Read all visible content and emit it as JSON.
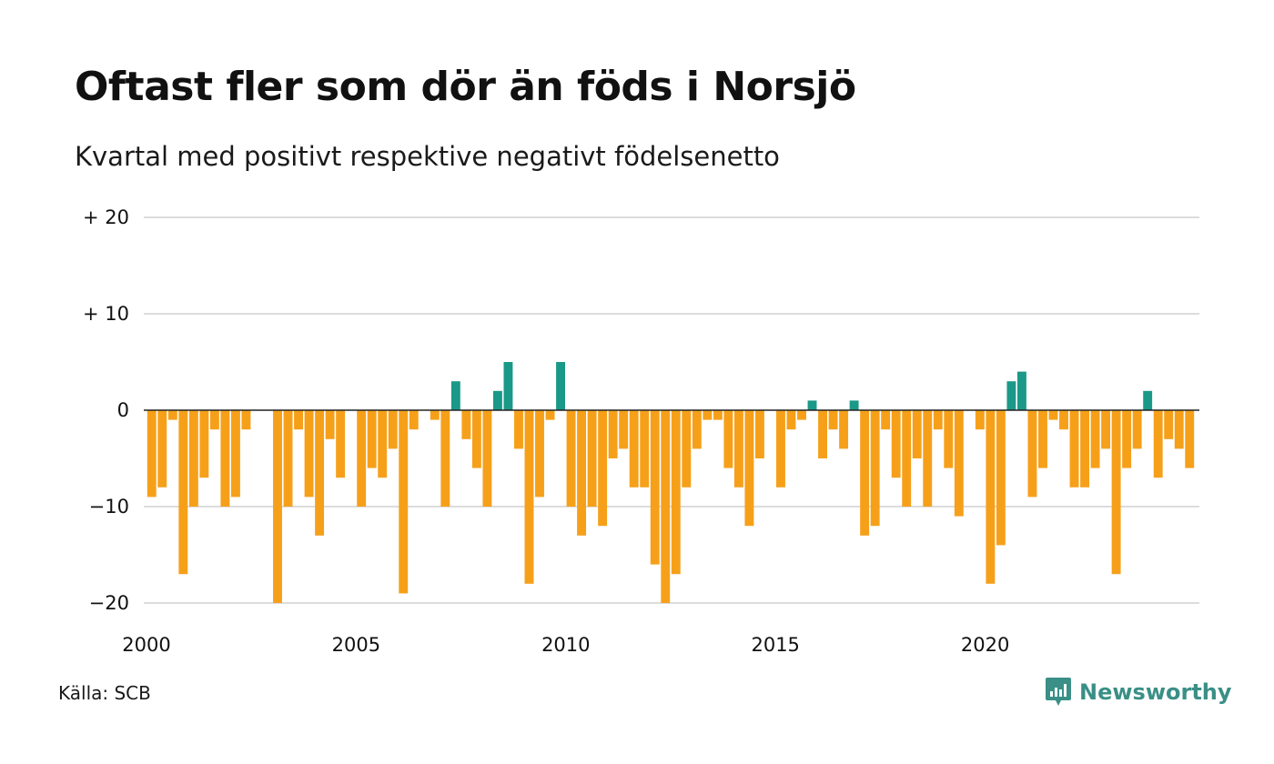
{
  "title": "Oftast fler som dör än föds i Norsjö",
  "subtitle": "Kvartal med positivt respektive negativt födelsenetto",
  "source": "Källa: SCB",
  "brand": "Newsworthy",
  "colors": {
    "positive": "#1a9988",
    "negative": "#f6a01a",
    "grid": "#dcdcdc",
    "axis": "#222222",
    "brand": "#3a8f86"
  },
  "chart_data": {
    "type": "bar",
    "start_year": 2000,
    "values": [
      -9,
      -8,
      -1,
      -17,
      -10,
      -7,
      -2,
      -10,
      -9,
      -2,
      0,
      0,
      -20,
      -10,
      -2,
      -9,
      -13,
      -3,
      -7,
      0,
      -10,
      -6,
      -7,
      -4,
      -19,
      -2,
      0,
      -1,
      -10,
      3,
      -3,
      -6,
      -10,
      2,
      5,
      -4,
      -18,
      -9,
      -1,
      5,
      -10,
      -13,
      -10,
      -12,
      -5,
      -4,
      -8,
      -8,
      -16,
      -20,
      -17,
      -8,
      -4,
      -1,
      -1,
      -6,
      -8,
      -12,
      -5,
      0,
      -8,
      -2,
      -1,
      1,
      -5,
      -2,
      -4,
      1,
      -13,
      -12,
      -2,
      -7,
      -10,
      -5,
      -10,
      -2,
      -6,
      -11,
      0,
      -2,
      -18,
      -14,
      3,
      4,
      -9,
      -6,
      -1,
      -2,
      -8,
      -8,
      -6,
      -4,
      -17,
      -6,
      -4,
      2,
      -7,
      -3,
      -4,
      -6
    ],
    "y_ticks": [
      {
        "value": 20,
        "label": "+ 20"
      },
      {
        "value": 10,
        "label": "+ 10"
      },
      {
        "value": 0,
        "label": "0"
      },
      {
        "value": -10,
        "label": "−10"
      },
      {
        "value": -20,
        "label": "−20"
      }
    ],
    "x_ticks": [
      {
        "year": 2000,
        "label": "2000"
      },
      {
        "year": 2005,
        "label": "2005"
      },
      {
        "year": 2010,
        "label": "2010"
      },
      {
        "year": 2015,
        "label": "2015"
      },
      {
        "year": 2020,
        "label": "2020"
      }
    ],
    "ylim": [
      -20,
      20
    ],
    "grid": true
  }
}
